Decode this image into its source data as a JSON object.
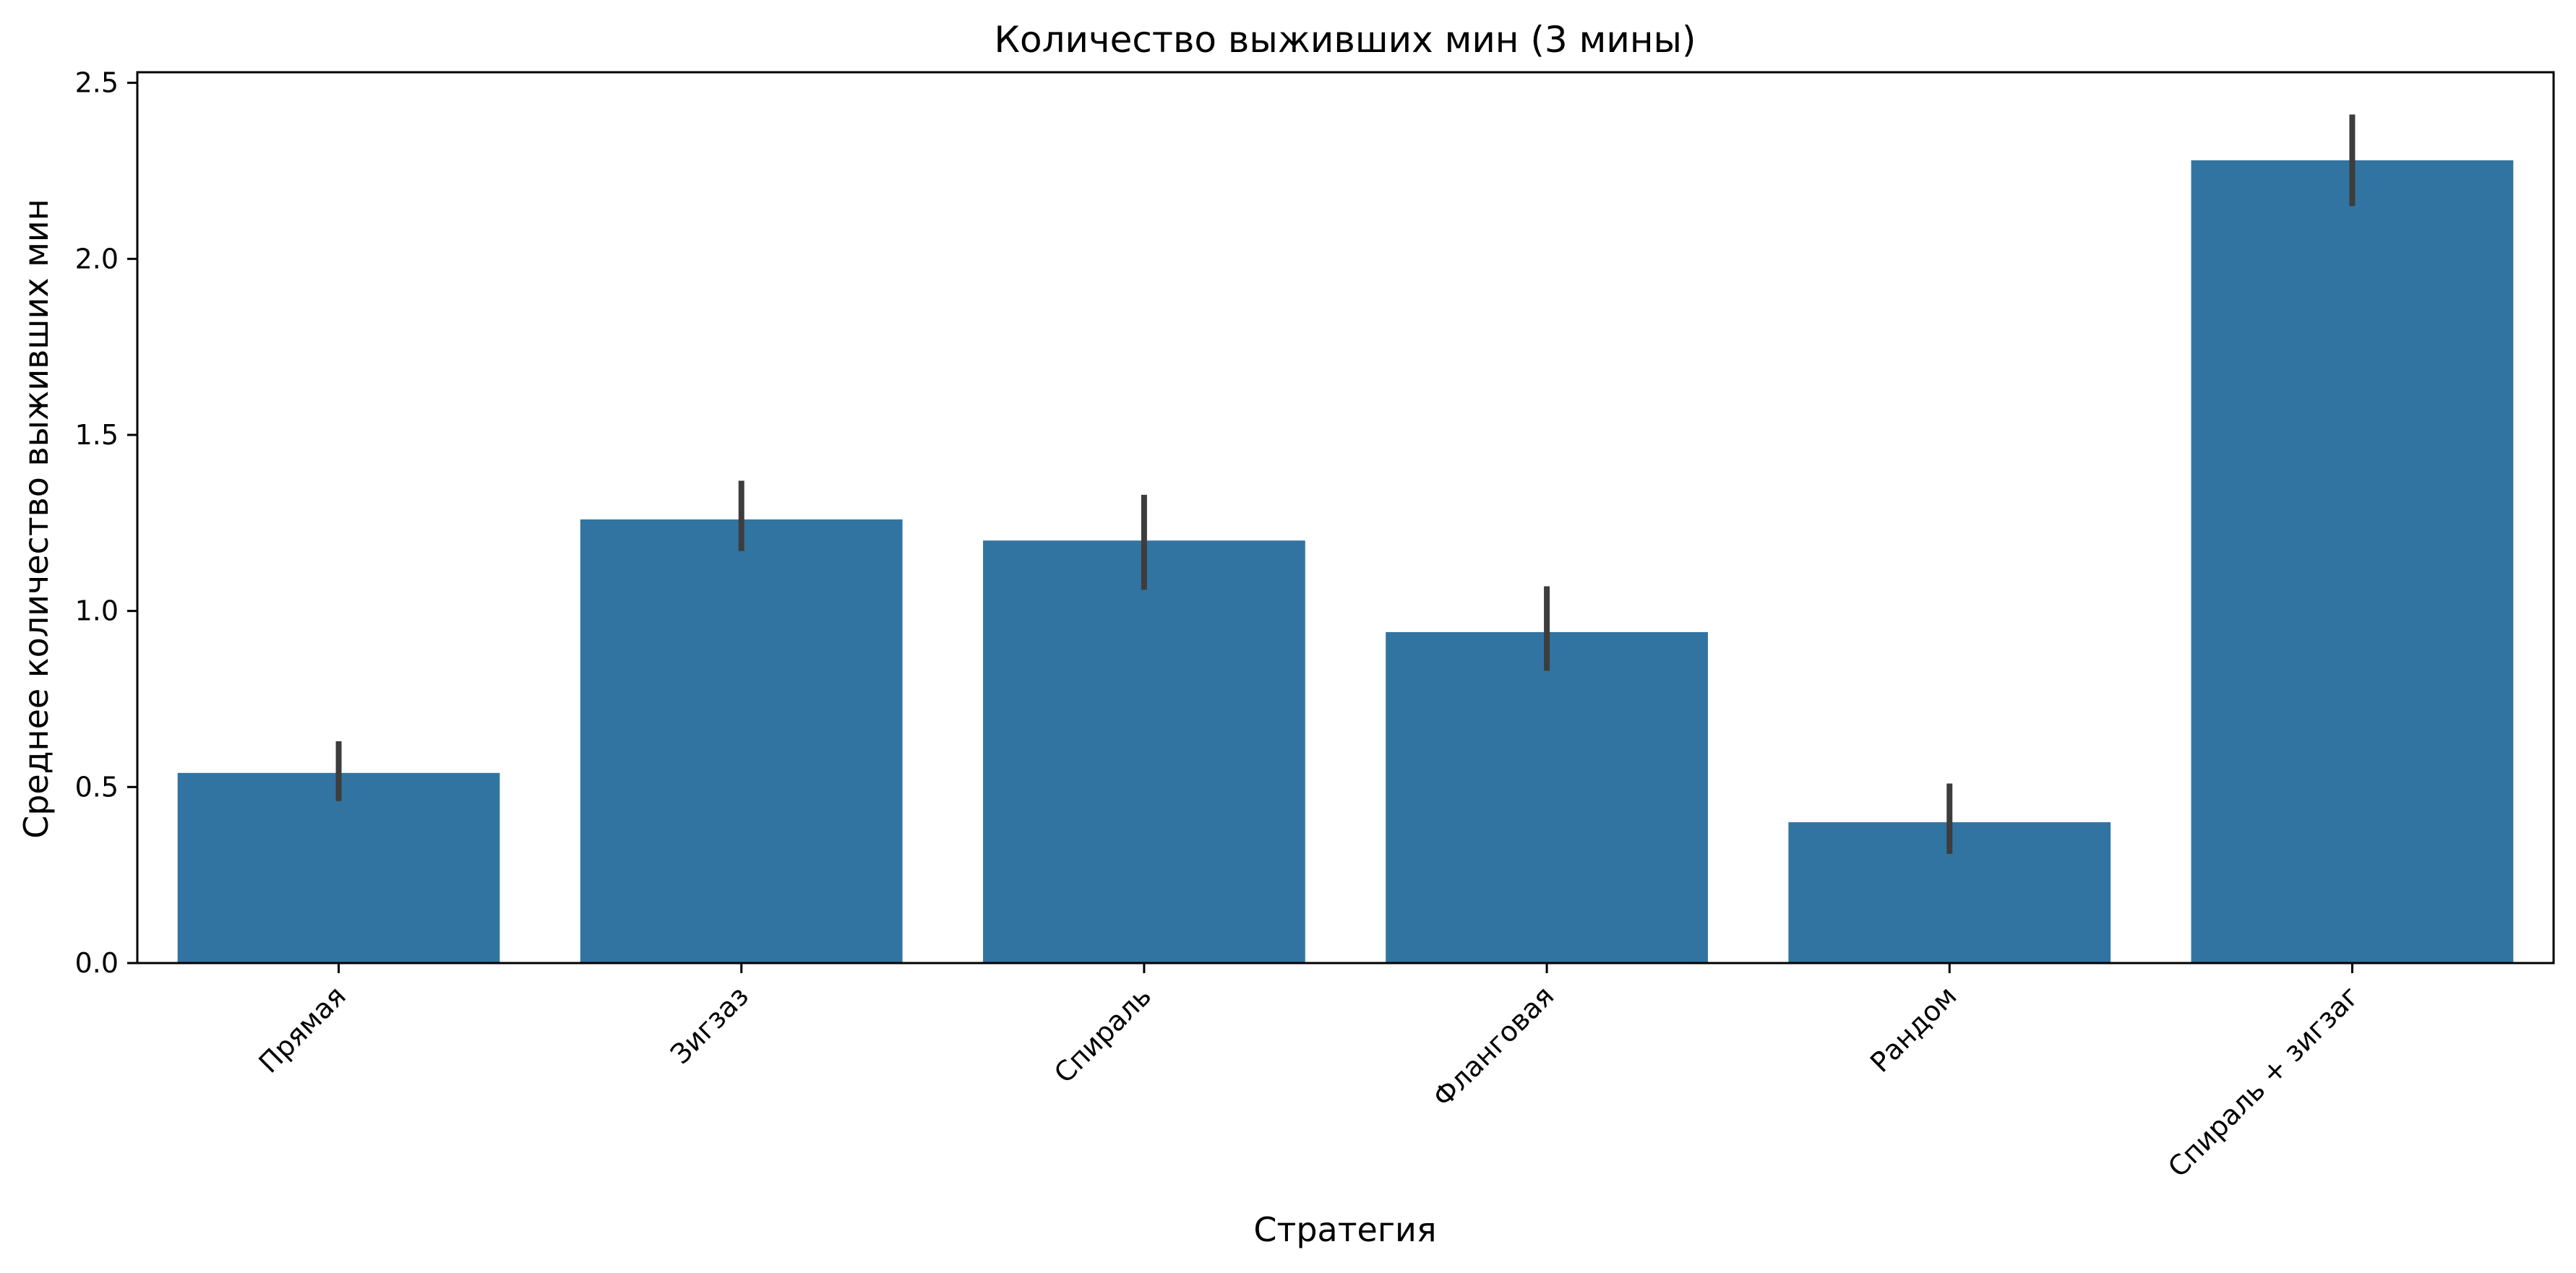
{
  "chart_data": {
    "type": "bar",
    "title": "Количество выживших мин (3 мины)",
    "xlabel": "Стратегия",
    "ylabel": "Среднее количество выживших мин",
    "categories": [
      "Прямая",
      "Зигзаз",
      "Спираль",
      "Фланговая",
      "Рандом",
      "Спираль + зигзаг"
    ],
    "values": [
      0.54,
      1.26,
      1.2,
      0.94,
      0.4,
      2.28
    ],
    "error_bars": {
      "lower": [
        0.46,
        1.17,
        1.06,
        0.83,
        0.31,
        2.15
      ],
      "upper": [
        0.63,
        1.37,
        1.33,
        1.07,
        0.51,
        2.41
      ]
    },
    "ylim": [
      0,
      2.53
    ],
    "yticks": [
      0.0,
      0.5,
      1.0,
      1.5,
      2.0,
      2.5
    ],
    "ytick_labels": [
      "0.0",
      "0.5",
      "1.0",
      "1.5",
      "2.0",
      "2.5"
    ],
    "xtick_rotation_deg": -45,
    "grid": false,
    "colors": {
      "bar": "#3274a1",
      "error_bar": "#3d3d3d",
      "axis": "#000000"
    }
  }
}
